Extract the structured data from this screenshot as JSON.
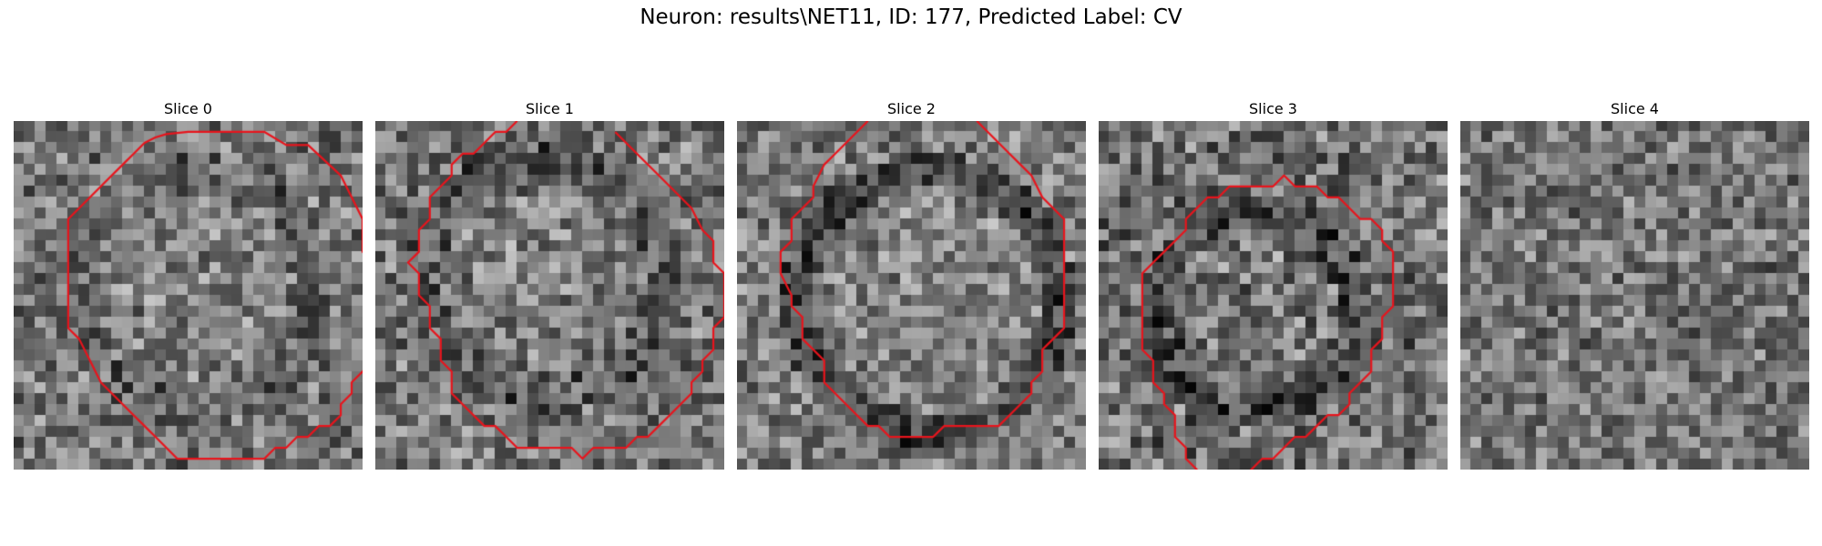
{
  "figure": {
    "title": "Neuron: results\\NET11, ID: 177, Predicted Label: CV"
  },
  "slices": [
    {
      "label": "Slice 0",
      "contour": "closed"
    },
    {
      "label": "Slice 1",
      "contour": "open"
    },
    {
      "label": "Slice 2",
      "contour": "open"
    },
    {
      "label": "Slice 3",
      "contour": "closed"
    },
    {
      "label": "Slice 4",
      "contour": "none"
    }
  ],
  "colors": {
    "contour": "#e8141c",
    "background": "#ffffff"
  }
}
